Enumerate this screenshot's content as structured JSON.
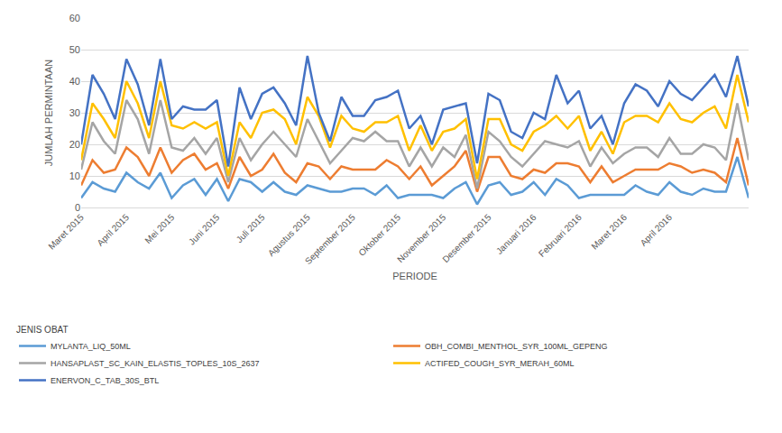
{
  "chart_data": {
    "type": "line",
    "stacked": true,
    "grid": true,
    "legend": "bottom",
    "legend_title": "JENIS OBAT",
    "x_label": "PERIODE",
    "y_label": "JUMLAH PERMINTAAN",
    "categories": [
      "Maret 2015",
      null,
      null,
      null,
      "April 2015",
      null,
      null,
      null,
      "Mei 2015",
      null,
      null,
      null,
      "Juni 2015",
      null,
      null,
      null,
      "Juli 2015",
      null,
      null,
      null,
      "Agustus 2015",
      null,
      null,
      null,
      "September 2015",
      null,
      null,
      null,
      "Oktober 2015",
      null,
      null,
      null,
      "November 2015",
      null,
      null,
      null,
      "Desember 2015",
      null,
      null,
      null,
      "Januari 2016",
      null,
      null,
      null,
      "Februari 2016",
      null,
      null,
      null,
      "Maret 2016",
      null,
      null,
      null,
      "April 2016",
      null,
      null,
      null,
      null,
      null,
      null,
      null
    ],
    "ylim": [
      0,
      60
    ],
    "yticks": [
      0,
      10,
      20,
      30,
      40,
      50,
      60
    ],
    "series": [
      {
        "name": "MYLANTA_LIQ_50ML",
        "color": "#5b9bd5",
        "values": [
          3,
          8,
          6,
          5,
          11,
          8,
          6,
          11,
          3,
          7,
          9,
          4,
          9,
          2,
          9,
          8,
          5,
          8,
          5,
          4,
          7,
          6,
          5,
          5,
          6,
          6,
          4,
          7,
          3,
          4,
          4,
          4,
          3,
          6,
          8,
          1,
          7,
          8,
          4,
          5,
          8,
          4,
          9,
          7,
          3,
          4,
          4,
          4,
          4,
          7,
          5,
          4,
          8,
          5,
          4,
          6,
          5,
          5,
          16,
          3
        ]
      },
      {
        "name": "OBH_COMBI_MENTHOL_SYR_100ML_GEPENG",
        "color": "#ed7d31",
        "values": [
          4,
          7,
          5,
          7,
          8,
          8,
          4,
          8,
          8,
          8,
          8,
          8,
          5,
          4,
          7,
          2,
          7,
          9,
          6,
          4,
          7,
          7,
          4,
          8,
          6,
          6,
          8,
          8,
          10,
          5,
          9,
          3,
          7,
          7,
          10,
          4,
          9,
          8,
          6,
          4,
          4,
          7,
          5,
          7,
          10,
          4,
          9,
          4,
          6,
          5,
          7,
          8,
          6,
          8,
          7,
          6,
          6,
          3,
          6,
          4
        ]
      },
      {
        "name": "HANSAPLAST_SC_KAIN_ELASTIS_TOPLES_10S_2637",
        "color": "#a5a5a5",
        "values": [
          5,
          12,
          10,
          5,
          15,
          12,
          7,
          15,
          8,
          3,
          5,
          5,
          8,
          2,
          6,
          5,
          8,
          7,
          9,
          8,
          14,
          8,
          5,
          5,
          10,
          9,
          12,
          6,
          8,
          4,
          6,
          6,
          9,
          3,
          5,
          1,
          8,
          5,
          6,
          4,
          5,
          10,
          6,
          5,
          8,
          5,
          6,
          6,
          7,
          7,
          7,
          4,
          8,
          4,
          6,
          8,
          8,
          7,
          11,
          8
        ]
      },
      {
        "name": "ACTIFED_COUGH_SYR_MERAH_60ML",
        "color": "#ffc000",
        "values": [
          3,
          6,
          7,
          5,
          6,
          5,
          5,
          6,
          7,
          7,
          5,
          8,
          5,
          2,
          5,
          7,
          10,
          7,
          8,
          4,
          7,
          8,
          5,
          11,
          3,
          3,
          3,
          6,
          8,
          5,
          7,
          5,
          5,
          9,
          5,
          3,
          4,
          7,
          4,
          5,
          7,
          5,
          9,
          6,
          8,
          5,
          5,
          3,
          10,
          10,
          10,
          11,
          11,
          11,
          10,
          10,
          13,
          10,
          9,
          12
        ]
      },
      {
        "name": "ENERVON_C_TAB_30S_BTL",
        "color": "#4472c4",
        "values": [
          5,
          9,
          8,
          6,
          7,
          6,
          4,
          7,
          2,
          7,
          4,
          6,
          7,
          3,
          11,
          6,
          6,
          7,
          5,
          6,
          13,
          1,
          2,
          6,
          4,
          5,
          7,
          8,
          8,
          7,
          3,
          2,
          7,
          7,
          5,
          5,
          8,
          6,
          4,
          4,
          6,
          2,
          13,
          8,
          8,
          7,
          5,
          3,
          6,
          10,
          8,
          5,
          7,
          8,
          7,
          8,
          10,
          10,
          6,
          5
        ]
      }
    ]
  }
}
